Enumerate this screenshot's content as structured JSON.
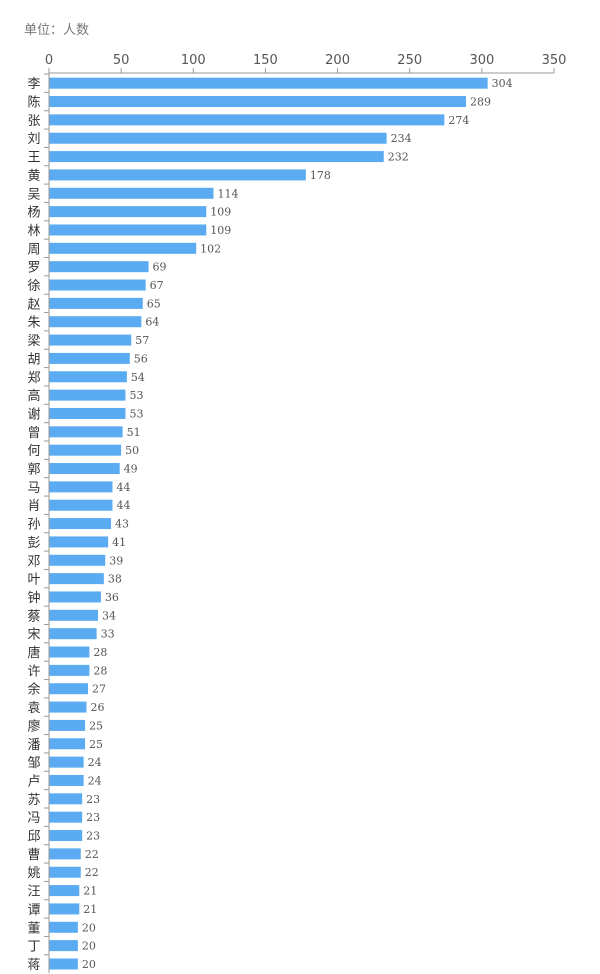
{
  "unit_label": "单位：人数",
  "colors": {
    "bar": "#5aabf2",
    "axis": "#999999",
    "text": "#555555"
  },
  "chart_data": {
    "type": "bar",
    "orientation": "horizontal",
    "xlim": [
      0,
      350
    ],
    "xticks": [
      0,
      50,
      100,
      150,
      200,
      250,
      300,
      350
    ],
    "x_axis_position": "top",
    "grid": false,
    "categories": [
      "李",
      "陈",
      "张",
      "刘",
      "王",
      "黄",
      "吴",
      "杨",
      "林",
      "周",
      "罗",
      "徐",
      "赵",
      "朱",
      "梁",
      "胡",
      "郑",
      "高",
      "谢",
      "曾",
      "何",
      "郭",
      "马",
      "肖",
      "孙",
      "彭",
      "邓",
      "叶",
      "钟",
      "蔡",
      "宋",
      "唐",
      "许",
      "余",
      "袁",
      "廖",
      "潘",
      "邹",
      "卢",
      "苏",
      "冯",
      "邱",
      "曹",
      "姚",
      "汪",
      "谭",
      "董",
      "丁",
      "蒋"
    ],
    "values": [
      304,
      289,
      274,
      234,
      232,
      178,
      114,
      109,
      109,
      102,
      69,
      67,
      65,
      64,
      57,
      56,
      54,
      53,
      53,
      51,
      50,
      49,
      44,
      44,
      43,
      41,
      39,
      38,
      36,
      34,
      33,
      28,
      28,
      27,
      26,
      25,
      25,
      24,
      24,
      23,
      23,
      23,
      22,
      22,
      21,
      21,
      20,
      20,
      20
    ]
  }
}
